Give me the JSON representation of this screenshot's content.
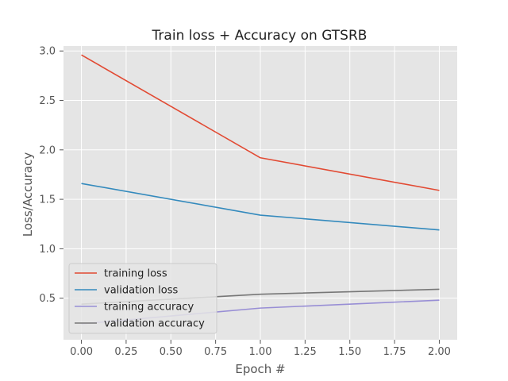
{
  "chart_data": {
    "type": "line",
    "title": "Train loss + Accuracy on GTSRB",
    "xlabel": "Epoch #",
    "ylabel": "Loss/Accuracy",
    "x": [
      0,
      1,
      2
    ],
    "xlim": [
      -0.1,
      2.1
    ],
    "ylim": [
      0.08,
      3.05
    ],
    "xticks": [
      "0.00",
      "0.25",
      "0.50",
      "0.75",
      "1.00",
      "1.25",
      "1.50",
      "1.75",
      "2.00"
    ],
    "yticks": [
      "0.5",
      "1.0",
      "1.5",
      "2.0",
      "2.5",
      "3.0"
    ],
    "grid": true,
    "background": "#e5e5e5",
    "legend_position": "lower-left",
    "series": [
      {
        "name": "training loss",
        "color": "#e24a33",
        "values": [
          2.96,
          1.92,
          1.59
        ]
      },
      {
        "name": "validation loss",
        "color": "#348abd",
        "values": [
          1.66,
          1.34,
          1.19
        ]
      },
      {
        "name": "training accuracy",
        "color": "#988ed5",
        "values": [
          0.24,
          0.4,
          0.48
        ]
      },
      {
        "name": "validation accuracy",
        "color": "#777777",
        "values": [
          0.44,
          0.54,
          0.59
        ]
      }
    ]
  }
}
